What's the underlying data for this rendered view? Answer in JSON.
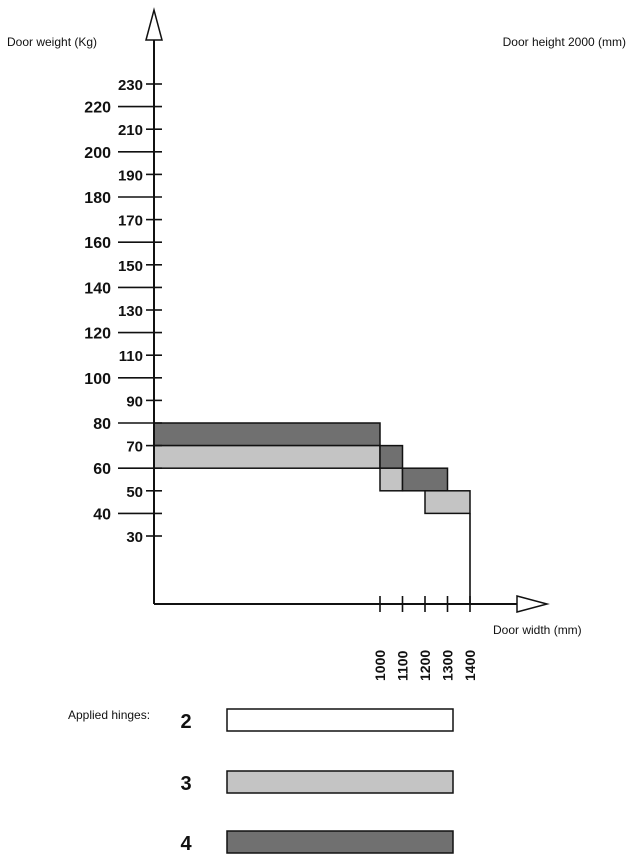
{
  "chart_data": {
    "type": "bar",
    "title": "",
    "ylabel": "Door weight (Kg)",
    "xlabel": "Door width (mm)",
    "subtitle": "Door height 2000 (mm)",
    "ylim": [
      0,
      240
    ],
    "yticks": [
      30,
      40,
      50,
      60,
      70,
      80,
      90,
      100,
      110,
      120,
      130,
      140,
      150,
      160,
      170,
      180,
      190,
      200,
      210,
      220,
      230
    ],
    "xticks": [
      1000,
      1100,
      1200,
      1300,
      1400
    ],
    "xlim": [
      0,
      1400
    ],
    "regions": [
      {
        "hinges": "4",
        "x0": 0,
        "x1": 1000,
        "y0": 70,
        "y1": 80
      },
      {
        "hinges": "3",
        "x0": 0,
        "x1": 1000,
        "y0": 60,
        "y1": 70
      },
      {
        "hinges": "4",
        "x0": 1000,
        "x1": 1100,
        "y0": 60,
        "y1": 70
      },
      {
        "hinges": "3",
        "x0": 1000,
        "x1": 1100,
        "y0": 50,
        "y1": 60
      },
      {
        "hinges": "4",
        "x0": 1100,
        "x1": 1300,
        "y0": 50,
        "y1": 60
      },
      {
        "hinges": "3",
        "x0": 1200,
        "x1": 1400,
        "y0": 40,
        "y1": 50
      }
    ],
    "legend": {
      "title": "Applied hinges:",
      "entries": [
        {
          "label": "2",
          "color": "#ffffff"
        },
        {
          "label": "3",
          "color": "#c4c4c4"
        },
        {
          "label": "4",
          "color": "#707070"
        }
      ]
    }
  }
}
